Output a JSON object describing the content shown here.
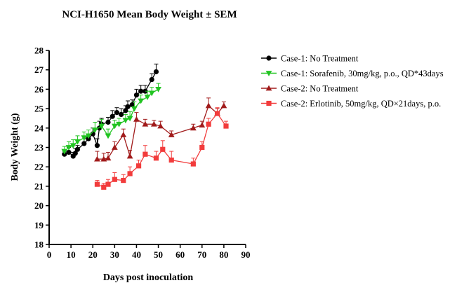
{
  "chart_data": {
    "type": "line",
    "title": "NCI-H1650 Mean Body Weight ± SEM",
    "xlabel": "Days post inoculation",
    "ylabel": "Body Weight (g)",
    "xlim": [
      0,
      90
    ],
    "ylim": [
      18,
      28
    ],
    "xticks": [
      "0",
      "10",
      "20",
      "30",
      "40",
      "50",
      "60",
      "70",
      "80",
      "90"
    ],
    "yticks": [
      "18",
      "19",
      "20",
      "21",
      "22",
      "23",
      "24",
      "25",
      "26",
      "27",
      "28"
    ],
    "grid": false,
    "legend_position": "right",
    "series": [
      {
        "name": "Case-1: No Treatment",
        "color": "#000000",
        "marker": "circle",
        "x": [
          7,
          9,
          11,
          12,
          13,
          16,
          18,
          20,
          22,
          23,
          24,
          27,
          29,
          31,
          33,
          35,
          36,
          38,
          40,
          42,
          44,
          47,
          49
        ],
        "y": [
          22.65,
          22.75,
          22.55,
          22.7,
          22.9,
          23.2,
          23.45,
          23.7,
          23.1,
          24.0,
          24.2,
          24.3,
          24.6,
          24.8,
          24.7,
          24.9,
          25.1,
          25.2,
          25.7,
          25.9,
          25.9,
          26.5,
          26.9
        ],
        "err": [
          0.15,
          0.25,
          0.2,
          0.25,
          0.2,
          0.25,
          0.25,
          0.3,
          0.35,
          0.35,
          0.3,
          0.25,
          0.3,
          0.25,
          0.3,
          0.25,
          0.3,
          0.25,
          0.3,
          0.3,
          0.3,
          0.3,
          0.4
        ]
      },
      {
        "name": "Case-1: Sorafenib, 30mg/kg, p.o., QD*43days",
        "color": "#21c421",
        "marker": "triangle-down",
        "x": [
          7,
          9,
          11,
          13,
          16,
          18,
          21,
          24,
          27,
          30,
          32,
          35,
          37,
          39,
          42,
          45,
          47,
          50
        ],
        "y": [
          22.8,
          23.0,
          23.1,
          23.3,
          23.5,
          23.6,
          23.9,
          24.1,
          23.6,
          24.1,
          24.2,
          24.4,
          24.5,
          25.0,
          25.4,
          25.6,
          25.8,
          26.0
        ],
        "err": [
          0.25,
          0.3,
          0.3,
          0.3,
          0.3,
          0.3,
          0.4,
          0.35,
          0.35,
          0.3,
          0.3,
          0.3,
          0.35,
          0.35,
          0.3,
          0.3,
          0.3,
          0.3
        ]
      },
      {
        "name": "Case-2: No Treatment",
        "color": "#a11b1b",
        "marker": "triangle-up",
        "x": [
          22,
          25,
          27,
          30,
          34,
          37,
          40,
          44,
          48,
          51,
          56,
          66,
          70,
          73,
          77,
          80
        ],
        "y": [
          22.4,
          22.4,
          22.45,
          23.0,
          23.65,
          22.55,
          24.45,
          24.2,
          24.2,
          24.1,
          23.65,
          24.0,
          24.15,
          25.15,
          24.75,
          25.15
        ],
        "err": [
          0.4,
          0.3,
          0.3,
          0.3,
          0.3,
          0.3,
          0.35,
          0.25,
          0.2,
          0.25,
          0.2,
          0.2,
          0.2,
          0.4,
          0.25,
          0.2
        ]
      },
      {
        "name": "Case-2: Erlotinib, 50mg/kg, QD×21days,  p.o.",
        "color": "#f23c3c",
        "marker": "square",
        "x": [
          22,
          25,
          27,
          30,
          34,
          37,
          41,
          44,
          49,
          52,
          56,
          66,
          70,
          73,
          77,
          81
        ],
        "y": [
          21.1,
          20.95,
          21.1,
          21.35,
          21.3,
          21.65,
          22.05,
          22.65,
          22.45,
          22.9,
          22.35,
          22.15,
          23.0,
          24.2,
          24.75,
          24.1
        ],
        "err": [
          0.2,
          0.2,
          0.25,
          0.35,
          0.3,
          0.35,
          0.3,
          0.45,
          0.35,
          0.45,
          0.45,
          0.3,
          0.3,
          0.3,
          0.3,
          0.25
        ]
      }
    ]
  }
}
